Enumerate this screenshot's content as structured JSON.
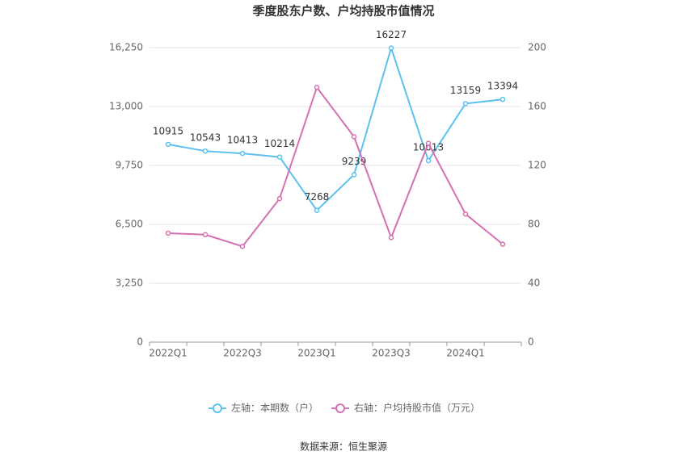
{
  "chart_data": {
    "type": "line",
    "title": "季度股东户数、户均持股市值情况",
    "source": "数据来源：恒生聚源",
    "categories": [
      "2022Q1",
      null,
      "2022Q3",
      null,
      "2023Q1",
      null,
      "2023Q3",
      null,
      "2024Q1",
      null
    ],
    "series": [
      {
        "name": "左轴：本期数（户）",
        "color": "#5bc2ef",
        "values": [
          10915,
          10543,
          10413,
          10214,
          7268,
          9239,
          16227,
          10013,
          13159,
          13394
        ]
      },
      {
        "name": "右轴：户均持股市值（万元）",
        "color": "#d470b2",
        "axis": "y2",
        "values": [
          74,
          73,
          65,
          97.5,
          173,
          139.5,
          71,
          135,
          87,
          66.5
        ]
      }
    ],
    "ylim": [
      0,
      16250
    ],
    "yticks": [
      0,
      {
        "value": 3250,
        "label": "3,250"
      },
      {
        "value": 6500,
        "label": "6,500"
      },
      {
        "value": 9750,
        "label": "9,750"
      },
      {
        "value": 13000,
        "label": "13,000"
      },
      {
        "value": 16250,
        "label": "16,250"
      }
    ],
    "y2lim": [
      0,
      200
    ],
    "y2ticks": [
      0,
      40,
      80,
      120,
      160,
      200
    ],
    "grid": true
  }
}
